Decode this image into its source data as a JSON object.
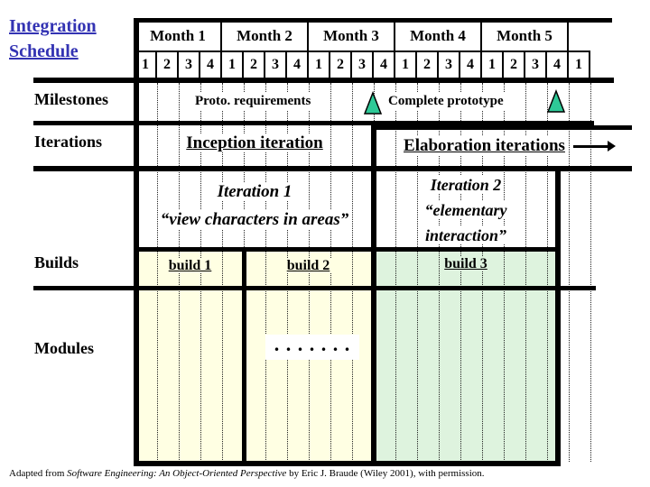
{
  "title": {
    "line1": "Integration",
    "line2": "Schedule"
  },
  "header": {
    "months": [
      "Month 1",
      "Month 2",
      "Month 3",
      "Month 4",
      "Month 5"
    ],
    "weeks": [
      "1",
      "2",
      "3",
      "4",
      "1",
      "2",
      "3",
      "4",
      "1",
      "2",
      "3",
      "4",
      "1",
      "2",
      "3",
      "4",
      "1",
      "2",
      "3",
      "4",
      "1"
    ]
  },
  "row_labels": {
    "milestones": "Milestones",
    "iterations": "Iterations",
    "builds": "Builds",
    "modules": "Modules"
  },
  "milestones": {
    "proto": "Proto. requirements",
    "complete": "Complete prototype"
  },
  "iterations": {
    "inception": "Inception iteration",
    "elaboration": "Elaboration iterations"
  },
  "iteration1": {
    "line1": "Iteration 1",
    "line2": "“view characters in areas”"
  },
  "iteration2": {
    "line1": "Iteration 2",
    "line2": "“elementary",
    "line3": "interaction”"
  },
  "builds": {
    "build1": "build 1",
    "build2": "build 2",
    "build3": "build 3"
  },
  "modules": {
    "dots": ". . . . . . ."
  },
  "footer": {
    "prefix": "Adapted from ",
    "book": "Software Engineering: An Object-Oriented Perspective",
    "suffix": " by Eric J. Braude (Wiley 2001), with permission."
  },
  "colors": {
    "title_blue": "#3333B3",
    "build_cream": "#FFFFE3",
    "build_green": "#DEF3DE",
    "milestone_triangle": "#2EC997"
  }
}
